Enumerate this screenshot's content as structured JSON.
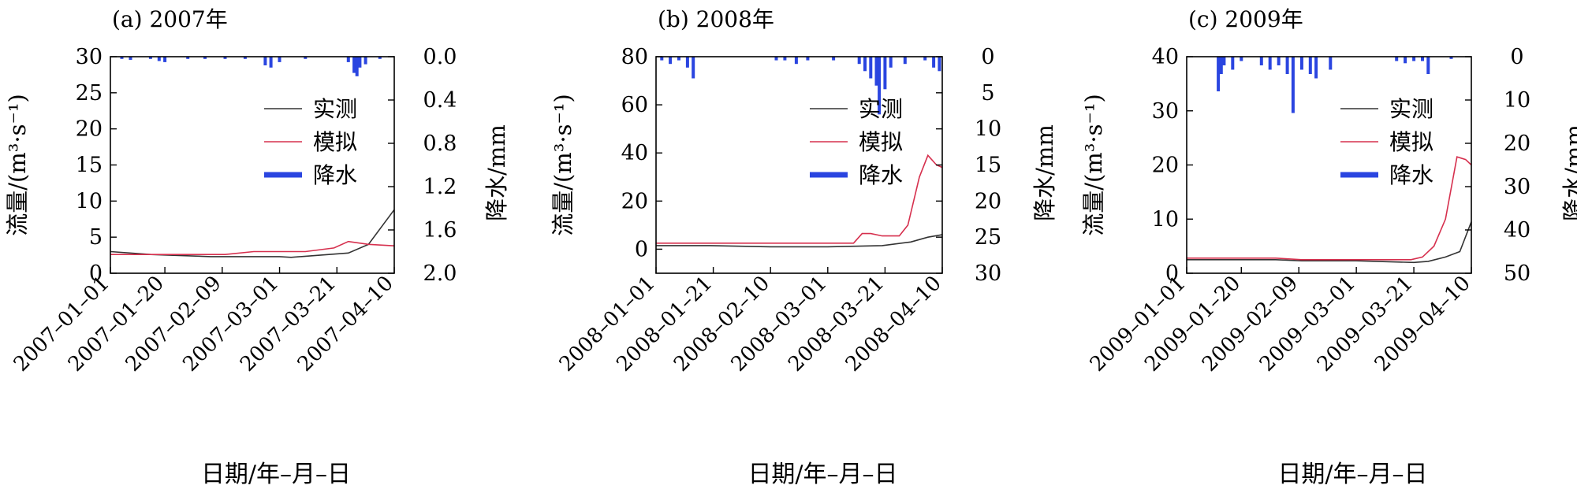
{
  "colors": {
    "observed": "#333333",
    "simulated": "#d6304e",
    "precipitation": "#2a45e0"
  },
  "chart_data": [
    {
      "type": "line",
      "title": "(a) 2007年",
      "xlabel": "日期/年–月–日",
      "ylabel": "流量/(m³·s⁻¹)",
      "y2label": "降水/mm",
      "xlim": [
        "2007-01-01",
        "2007-04-10"
      ],
      "xticks": [
        "2007–01–01",
        "2007–01–20",
        "2007–02–09",
        "2007–03–01",
        "2007–03–21",
        "2007–04–10"
      ],
      "ylim": [
        0,
        30
      ],
      "yticks": [
        0,
        5,
        10,
        15,
        20,
        25,
        30
      ],
      "y2lim": [
        0,
        2.0
      ],
      "y2ticks": [
        "0.0",
        "0.4",
        "0.8",
        "1.2",
        "1.6",
        "2.0"
      ],
      "y2_inverted": true,
      "legend": [
        "实测",
        "模拟",
        "降水"
      ],
      "legend_position": "right",
      "series": [
        {
          "name": "实测",
          "x": [
            "2007-01-01",
            "2007-01-15",
            "2007-02-05",
            "2007-03-01",
            "2007-03-05",
            "2007-03-15",
            "2007-03-25",
            "2007-04-01",
            "2007-04-10"
          ],
          "values": [
            3.0,
            2.6,
            2.3,
            2.3,
            2.2,
            2.5,
            2.8,
            4.0,
            8.8
          ]
        },
        {
          "name": "模拟",
          "x": [
            "2007-01-01",
            "2007-01-20",
            "2007-02-10",
            "2007-02-20",
            "2007-03-10",
            "2007-03-20",
            "2007-03-25",
            "2007-04-01",
            "2007-04-10"
          ],
          "values": [
            2.6,
            2.6,
            2.6,
            3.0,
            3.0,
            3.5,
            4.4,
            4.0,
            3.8
          ]
        }
      ],
      "precipitation": [
        {
          "x": "2007-01-05",
          "v": 0.02
        },
        {
          "x": "2007-01-08",
          "v": 0.03
        },
        {
          "x": "2007-01-15",
          "v": 0.02
        },
        {
          "x": "2007-01-18",
          "v": 0.04
        },
        {
          "x": "2007-01-20",
          "v": 0.05
        },
        {
          "x": "2007-01-28",
          "v": 0.02
        },
        {
          "x": "2007-02-03",
          "v": 0.02
        },
        {
          "x": "2007-02-10",
          "v": 0.02
        },
        {
          "x": "2007-02-17",
          "v": 0.02
        },
        {
          "x": "2007-02-24",
          "v": 0.08
        },
        {
          "x": "2007-02-26",
          "v": 0.1
        },
        {
          "x": "2007-03-01",
          "v": 0.05
        },
        {
          "x": "2007-03-10",
          "v": 0.02
        },
        {
          "x": "2007-03-25",
          "v": 0.05
        },
        {
          "x": "2007-03-27",
          "v": 0.15
        },
        {
          "x": "2007-03-28",
          "v": 0.18
        },
        {
          "x": "2007-03-29",
          "v": 0.1
        },
        {
          "x": "2007-03-31",
          "v": 0.07
        },
        {
          "x": "2007-04-05",
          "v": 0.02
        }
      ]
    },
    {
      "type": "line",
      "title": "(b) 2008年",
      "xlabel": "日期/年–月–日",
      "ylabel": "流量/(m³·s⁻¹)",
      "y2label": "降水/mm",
      "xlim": [
        "2008-01-01",
        "2008-04-10"
      ],
      "xticks": [
        "2008–01–01",
        "2008–01–21",
        "2008–02–10",
        "2008–03–01",
        "2008–03–21",
        "2008–04–10"
      ],
      "ylim": [
        -10,
        80
      ],
      "yticks": [
        0,
        20,
        40,
        60,
        80
      ],
      "y2lim": [
        0,
        30
      ],
      "y2ticks": [
        "0",
        "5",
        "10",
        "15",
        "20",
        "25",
        "30"
      ],
      "y2_inverted": true,
      "legend": [
        "实测",
        "模拟",
        "降水"
      ],
      "legend_position": "right",
      "series": [
        {
          "name": "实测",
          "x": [
            "2008-01-01",
            "2008-01-20",
            "2008-02-10",
            "2008-03-01",
            "2008-03-20",
            "2008-03-30",
            "2008-04-05",
            "2008-04-10"
          ],
          "values": [
            1.5,
            1.5,
            1.0,
            1.0,
            1.5,
            3.0,
            5.0,
            6.0
          ]
        },
        {
          "name": "模拟",
          "x": [
            "2008-01-01",
            "2008-02-10",
            "2008-03-10",
            "2008-03-13",
            "2008-03-16",
            "2008-03-20",
            "2008-03-26",
            "2008-03-29",
            "2008-04-02",
            "2008-04-05",
            "2008-04-08",
            "2008-04-10"
          ],
          "values": [
            2.5,
            2.5,
            2.5,
            6.5,
            6.5,
            5.5,
            5.5,
            10.0,
            30.0,
            39.0,
            35.0,
            34.0
          ]
        }
      ],
      "precipitation": [
        {
          "x": "2008-01-03",
          "v": 0.5
        },
        {
          "x": "2008-01-06",
          "v": 1.0
        },
        {
          "x": "2008-01-09",
          "v": 0.5
        },
        {
          "x": "2008-01-12",
          "v": 1.5
        },
        {
          "x": "2008-01-14",
          "v": 3.0
        },
        {
          "x": "2008-02-12",
          "v": 0.5
        },
        {
          "x": "2008-02-15",
          "v": 0.5
        },
        {
          "x": "2008-02-19",
          "v": 1.0
        },
        {
          "x": "2008-02-23",
          "v": 0.5
        },
        {
          "x": "2008-03-03",
          "v": 0.5
        },
        {
          "x": "2008-03-12",
          "v": 1.0
        },
        {
          "x": "2008-03-14",
          "v": 2.0
        },
        {
          "x": "2008-03-16",
          "v": 3.0
        },
        {
          "x": "2008-03-18",
          "v": 4.0
        },
        {
          "x": "2008-03-19",
          "v": 8.0
        },
        {
          "x": "2008-03-21",
          "v": 4.5
        },
        {
          "x": "2008-03-23",
          "v": 1.5
        },
        {
          "x": "2008-03-28",
          "v": 1.0
        },
        {
          "x": "2008-04-04",
          "v": 0.5
        },
        {
          "x": "2008-04-07",
          "v": 1.5
        },
        {
          "x": "2008-04-09",
          "v": 2.0
        }
      ]
    },
    {
      "type": "line",
      "title": "(c) 2009年",
      "xlabel": "日期/年–月–日",
      "ylabel": "流量/(m³·s⁻¹)",
      "y2label": "降水/mm",
      "xlim": [
        "2009-01-01",
        "2009-04-10"
      ],
      "xticks": [
        "2009–01–01",
        "2009–01–20",
        "2009–02–09",
        "2009–03–01",
        "2009–03–21",
        "2009–04–10"
      ],
      "ylim": [
        0,
        40
      ],
      "yticks": [
        0,
        10,
        20,
        30,
        40
      ],
      "y2lim": [
        0,
        50
      ],
      "y2ticks": [
        "0",
        "10",
        "20",
        "30",
        "40",
        "50"
      ],
      "y2_inverted": true,
      "legend": [
        "实测",
        "模拟",
        "降水"
      ],
      "legend_position": "right",
      "series": [
        {
          "name": "实测",
          "x": [
            "2009-01-01",
            "2009-02-01",
            "2009-02-10",
            "2009-03-01",
            "2009-03-21",
            "2009-03-26",
            "2009-04-01",
            "2009-04-06",
            "2009-04-10"
          ],
          "values": [
            2.5,
            2.5,
            2.3,
            2.3,
            2.0,
            2.2,
            3.0,
            4.0,
            9.5
          ]
        },
        {
          "name": "模拟",
          "x": [
            "2009-01-01",
            "2009-02-01",
            "2009-02-10",
            "2009-03-20",
            "2009-03-24",
            "2009-03-28",
            "2009-04-01",
            "2009-04-05",
            "2009-04-08",
            "2009-04-10"
          ],
          "values": [
            2.8,
            2.8,
            2.5,
            2.5,
            3.0,
            5.0,
            10.0,
            21.5,
            21.0,
            20.0
          ]
        }
      ],
      "precipitation": [
        {
          "x": "2009-01-12",
          "v": 8.0
        },
        {
          "x": "2009-01-13",
          "v": 4.0
        },
        {
          "x": "2009-01-14",
          "v": 2.0
        },
        {
          "x": "2009-01-17",
          "v": 3.0
        },
        {
          "x": "2009-01-20",
          "v": 1.0
        },
        {
          "x": "2009-01-27",
          "v": 2.0
        },
        {
          "x": "2009-01-30",
          "v": 3.0
        },
        {
          "x": "2009-02-02",
          "v": 2.0
        },
        {
          "x": "2009-02-05",
          "v": 4.0
        },
        {
          "x": "2009-02-07",
          "v": 13.0
        },
        {
          "x": "2009-02-10",
          "v": 3.0
        },
        {
          "x": "2009-02-13",
          "v": 4.0
        },
        {
          "x": "2009-02-15",
          "v": 5.0
        },
        {
          "x": "2009-02-20",
          "v": 3.0
        },
        {
          "x": "2009-03-15",
          "v": 1.0
        },
        {
          "x": "2009-03-18",
          "v": 1.5
        },
        {
          "x": "2009-03-21",
          "v": 1.0
        },
        {
          "x": "2009-03-24",
          "v": 1.0
        },
        {
          "x": "2009-03-26",
          "v": 4.0
        },
        {
          "x": "2009-04-03",
          "v": 0.5
        }
      ]
    }
  ]
}
